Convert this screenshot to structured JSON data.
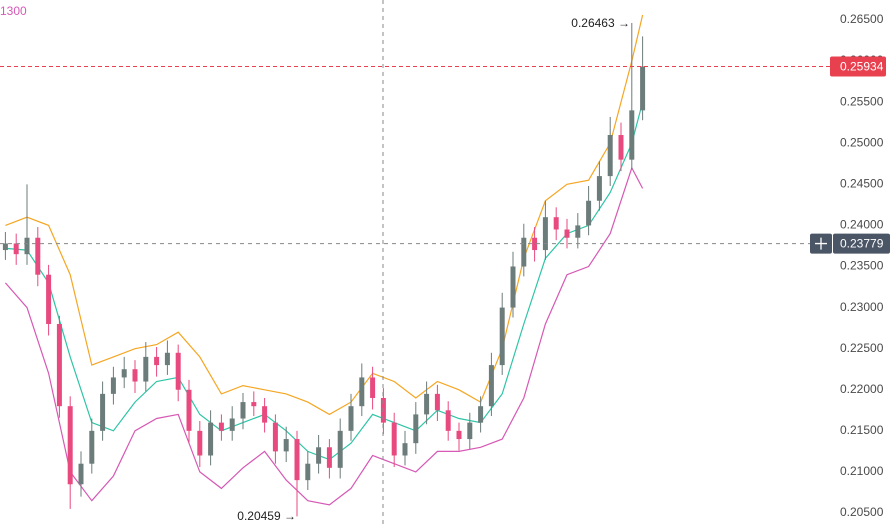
{
  "chart_data": {
    "type": "candlestick",
    "indicator_label": "1300",
    "candles": {
      "up_color": "#6b7c7a",
      "down_color": "#e84a7f",
      "open": [
        0.237,
        0.2378,
        0.2365,
        0.2385,
        0.234,
        0.228,
        0.218,
        0.2085,
        0.211,
        0.215,
        0.2195,
        0.2215,
        0.2225,
        0.221,
        0.224,
        0.223,
        0.2245,
        0.22,
        0.215,
        0.212,
        0.216,
        0.215,
        0.2165,
        0.2185,
        0.218,
        0.216,
        0.2125,
        0.214,
        0.209,
        0.211,
        0.213,
        0.2105,
        0.215,
        0.218,
        0.2215,
        0.219,
        0.216,
        0.212,
        0.2135,
        0.217,
        0.2195,
        0.2175,
        0.215,
        0.214,
        0.216,
        0.218,
        0.223,
        0.23,
        0.235,
        0.2385,
        0.237,
        0.241,
        0.2395,
        0.2385,
        0.24,
        0.243,
        0.246,
        0.251,
        0.248,
        0.254
      ],
      "high": [
        0.2392,
        0.239,
        0.245,
        0.2398,
        0.2352,
        0.229,
        0.2192,
        0.2125,
        0.2165,
        0.221,
        0.2228,
        0.224,
        0.2236,
        0.2258,
        0.2252,
        0.226,
        0.2255,
        0.2212,
        0.2162,
        0.2175,
        0.217,
        0.218,
        0.2196,
        0.2198,
        0.219,
        0.217,
        0.2155,
        0.215,
        0.2125,
        0.2145,
        0.214,
        0.2165,
        0.2195,
        0.2232,
        0.2228,
        0.2202,
        0.2172,
        0.215,
        0.2185,
        0.221,
        0.2206,
        0.2186,
        0.216,
        0.2172,
        0.2192,
        0.2245,
        0.2318,
        0.2368,
        0.2402,
        0.2398,
        0.243,
        0.2422,
        0.2408,
        0.2415,
        0.2448,
        0.2478,
        0.2532,
        0.2525,
        0.26463,
        0.263
      ],
      "low": [
        0.2358,
        0.2352,
        0.2352,
        0.2326,
        0.2266,
        0.2166,
        0.2055,
        0.207,
        0.2098,
        0.2138,
        0.2182,
        0.2202,
        0.2196,
        0.2198,
        0.2216,
        0.2218,
        0.2186,
        0.2136,
        0.2106,
        0.2108,
        0.2138,
        0.2138,
        0.2152,
        0.2168,
        0.2148,
        0.211,
        0.2112,
        0.20459,
        0.2078,
        0.2098,
        0.2092,
        0.2092,
        0.2138,
        0.2168,
        0.2176,
        0.2146,
        0.2106,
        0.2108,
        0.2122,
        0.2158,
        0.2162,
        0.2138,
        0.2126,
        0.2128,
        0.2148,
        0.2168,
        0.2218,
        0.2288,
        0.2338,
        0.2356,
        0.2358,
        0.2382,
        0.2372,
        0.2372,
        0.2388,
        0.2418,
        0.2448,
        0.2466,
        0.2468,
        0.2528
      ],
      "close": [
        0.2378,
        0.2365,
        0.2385,
        0.234,
        0.228,
        0.218,
        0.2085,
        0.211,
        0.215,
        0.2195,
        0.2215,
        0.2225,
        0.221,
        0.224,
        0.223,
        0.2245,
        0.22,
        0.215,
        0.212,
        0.216,
        0.215,
        0.2165,
        0.2185,
        0.218,
        0.216,
        0.2125,
        0.214,
        0.209,
        0.211,
        0.213,
        0.2105,
        0.215,
        0.218,
        0.2215,
        0.219,
        0.216,
        0.212,
        0.2135,
        0.217,
        0.2195,
        0.2175,
        0.215,
        0.214,
        0.216,
        0.218,
        0.223,
        0.23,
        0.235,
        0.2385,
        0.237,
        0.241,
        0.2395,
        0.2385,
        0.24,
        0.243,
        0.246,
        0.251,
        0.248,
        0.254,
        0.25934
      ]
    },
    "lines": [
      {
        "color": "#f5a623",
        "x": [
          0,
          2,
          4,
          6,
          8,
          10,
          12,
          14,
          16,
          18,
          20,
          22,
          24,
          26,
          28,
          30,
          32,
          34,
          36,
          38,
          40,
          42,
          44,
          46,
          48,
          50,
          52,
          54,
          56,
          58,
          59
        ],
        "values": [
          0.24,
          0.241,
          0.24,
          0.234,
          0.223,
          0.224,
          0.225,
          0.2255,
          0.227,
          0.224,
          0.2195,
          0.2205,
          0.22,
          0.2195,
          0.2185,
          0.217,
          0.2185,
          0.222,
          0.221,
          0.219,
          0.221,
          0.22,
          0.2185,
          0.225,
          0.236,
          0.243,
          0.245,
          0.2455,
          0.25,
          0.26,
          0.2656
        ]
      },
      {
        "color": "#2ec4a6",
        "x": [
          0,
          2,
          4,
          6,
          8,
          10,
          12,
          14,
          16,
          18,
          20,
          22,
          24,
          26,
          28,
          30,
          32,
          34,
          36,
          38,
          40,
          42,
          44,
          46,
          48,
          50,
          52,
          54,
          56,
          58,
          59
        ],
        "values": [
          0.2372,
          0.237,
          0.233,
          0.224,
          0.216,
          0.215,
          0.2185,
          0.221,
          0.2215,
          0.217,
          0.215,
          0.216,
          0.217,
          0.215,
          0.2125,
          0.2115,
          0.2135,
          0.217,
          0.216,
          0.215,
          0.2175,
          0.2165,
          0.216,
          0.2195,
          0.228,
          0.236,
          0.239,
          0.24,
          0.244,
          0.25,
          0.255
        ]
      },
      {
        "color": "#d659b5",
        "x": [
          0,
          2,
          4,
          6,
          8,
          10,
          12,
          14,
          16,
          18,
          20,
          22,
          24,
          26,
          28,
          30,
          32,
          34,
          36,
          38,
          40,
          42,
          44,
          46,
          48,
          50,
          52,
          54,
          56,
          58,
          59
        ],
        "values": [
          0.233,
          0.23,
          0.222,
          0.21,
          0.2065,
          0.2095,
          0.215,
          0.2165,
          0.217,
          0.21,
          0.208,
          0.2105,
          0.2125,
          0.209,
          0.2065,
          0.206,
          0.208,
          0.212,
          0.211,
          0.21,
          0.2125,
          0.2125,
          0.213,
          0.214,
          0.219,
          0.228,
          0.234,
          0.235,
          0.239,
          0.247,
          0.2445
        ]
      }
    ],
    "xlim": [
      -0.5,
      59.5
    ],
    "ylim": [
      0.20342,
      0.26743
    ],
    "yticks": [
      {
        "value": 0.205,
        "label": "0.20500"
      },
      {
        "value": 0.21,
        "label": "0.21000"
      },
      {
        "value": 0.215,
        "label": "0.21500"
      },
      {
        "value": 0.22,
        "label": "0.22000"
      },
      {
        "value": 0.225,
        "label": "0.22500"
      },
      {
        "value": 0.23,
        "label": "0.23000"
      },
      {
        "value": 0.235,
        "label": "0.23500"
      },
      {
        "value": 0.24,
        "label": "0.24000"
      },
      {
        "value": 0.245,
        "label": "0.24500"
      },
      {
        "value": 0.25,
        "label": "0.25000"
      },
      {
        "value": 0.255,
        "label": "0.25500"
      },
      {
        "value": 0.26,
        "label": "0.26000"
      },
      {
        "value": 0.265,
        "label": "0.26500"
      }
    ],
    "last_price": {
      "value": 0.25934,
      "label": "0.25934",
      "color": "#e8404f"
    },
    "crosshair_price": {
      "value": 0.23779,
      "label": "0.23779"
    },
    "annotations": [
      {
        "text": "0.26463 →"
      },
      {
        "text": "0.20459 →"
      }
    ]
  }
}
